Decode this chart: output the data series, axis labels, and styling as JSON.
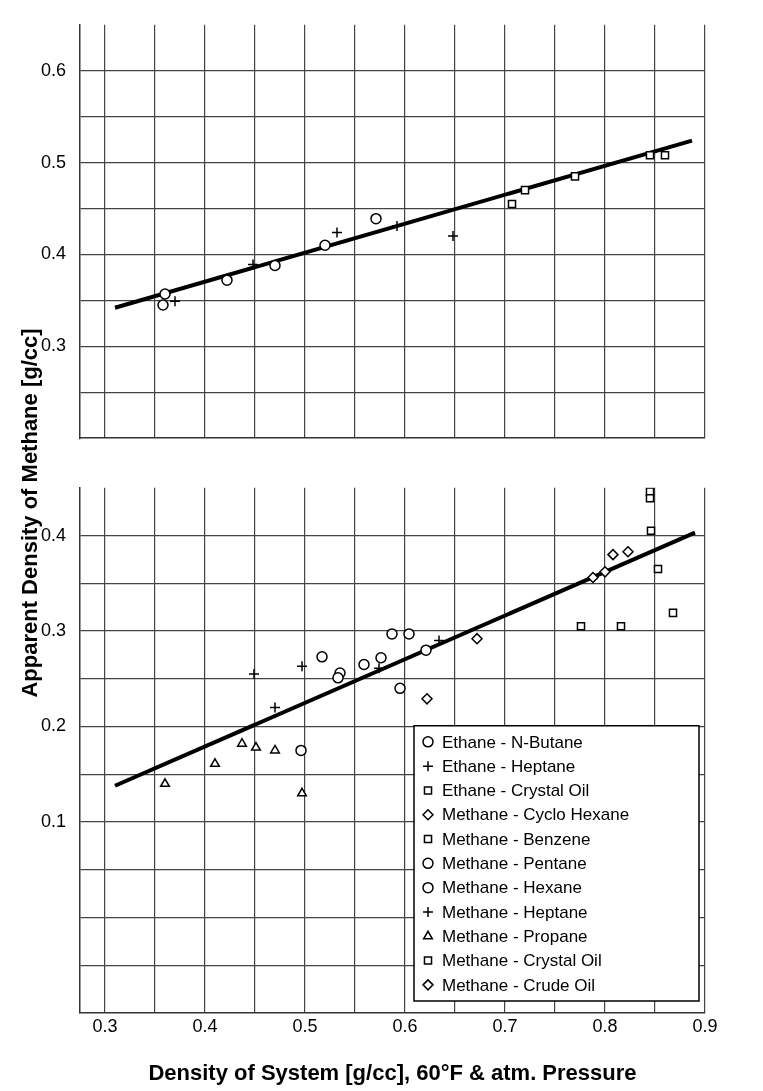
{
  "chart_data": [
    {
      "type": "scatter",
      "tick_labels": "y",
      "grid": true,
      "xlim": [
        0.275,
        0.9
      ],
      "ylim": [
        0.2,
        0.65
      ],
      "xticks": [
        0.3,
        {
          "value": 0.35,
          "label": null
        },
        0.4,
        {
          "value": 0.45,
          "label": null
        },
        0.5,
        {
          "value": 0.55,
          "label": null
        },
        0.6,
        {
          "value": 0.65,
          "label": null
        },
        0.7,
        {
          "value": 0.75,
          "label": null
        },
        0.8,
        {
          "value": 0.85,
          "label": null
        },
        0.9
      ],
      "yticks": [
        {
          "value": 0.25,
          "label": null
        },
        0.3,
        {
          "value": 0.35,
          "label": null
        },
        0.4,
        {
          "value": 0.45,
          "label": null
        },
        0.5,
        {
          "value": 0.55,
          "label": null
        },
        0.6
      ],
      "series": [
        {
          "name": "Ethane - N-Butane",
          "color": "#000000",
          "marker": "circle",
          "x": [
            0.36,
            0.358,
            0.422,
            0.47,
            0.52,
            0.571
          ],
          "values": [
            0.357,
            0.345,
            0.372,
            0.388,
            0.41,
            0.439
          ]
        },
        {
          "name": "Ethane - Heptane",
          "color": "#000000",
          "marker": "cross",
          "x": [
            0.37,
            0.448,
            0.532,
            0.592,
            0.648
          ],
          "values": [
            0.349,
            0.389,
            0.424,
            0.431,
            0.42
          ]
        },
        {
          "name": "Ethane - Crystal Oil",
          "color": "#000000",
          "marker": "square",
          "x": [
            0.707,
            0.72,
            0.77,
            0.845,
            0.86
          ],
          "values": [
            0.455,
            0.47,
            0.485,
            0.508,
            0.508
          ]
        },
        {
          "type": "line",
          "color": "#000000",
          "marker": "none",
          "x": [
            0.31,
            0.887
          ],
          "values": [
            0.342,
            0.524
          ]
        }
      ]
    },
    {
      "type": "scatter",
      "ylabel": "Apparent Density of Methane [g/cc]",
      "xlabel": "Density of System [g/cc], 60°F & atm. Pressure",
      "grid": true,
      "legend": "bottom right",
      "xlim": [
        0.275,
        0.9
      ],
      "ylim": [
        -0.1,
        0.45
      ],
      "xticks": [
        0.3,
        {
          "value": 0.35,
          "label": null
        },
        0.4,
        {
          "value": 0.45,
          "label": null
        },
        0.5,
        {
          "value": 0.55,
          "label": null
        },
        0.6,
        {
          "value": 0.65,
          "label": null
        },
        0.7,
        {
          "value": 0.75,
          "label": null
        },
        0.8,
        {
          "value": 0.85,
          "label": null
        },
        0.9
      ],
      "yticks": [
        {
          "value": -0.05,
          "label": null
        },
        {
          "value": 0,
          "label": null
        },
        {
          "value": 0.05,
          "label": null
        },
        0.1,
        {
          "value": 0.15,
          "label": null
        },
        0.2,
        {
          "value": 0.25,
          "label": null
        },
        0.3,
        {
          "value": 0.35,
          "label": null
        },
        0.4
      ],
      "series": [
        {
          "name": "Methane - Cyclo Hexane",
          "color": "#000000",
          "marker": "diamond",
          "x": [
            0.622,
            0.672
          ],
          "values": [
            0.229,
            0.292
          ]
        },
        {
          "name": "Methane - Benzene",
          "color": "#000000",
          "marker": "square",
          "x": [
            0.776,
            0.816
          ],
          "values": [
            0.305,
            0.305
          ]
        },
        {
          "name": "Methane - Pentane",
          "color": "#000000",
          "marker": "circle",
          "x": [
            0.496,
            0.533,
            0.595,
            0.576
          ],
          "values": [
            0.175,
            0.251,
            0.24,
            0.272
          ]
        },
        {
          "name": "Methane - Hexane",
          "color": "#000000",
          "marker": "circle",
          "x": [
            0.517,
            0.535,
            0.559,
            0.587,
            0.604,
            0.621
          ],
          "values": [
            0.273,
            0.256,
            0.265,
            0.297,
            0.297,
            0.28
          ]
        },
        {
          "name": "Methane - Heptane",
          "color": "#000000",
          "marker": "cross",
          "x": [
            0.449,
            0.497,
            0.47,
            0.574,
            0.634
          ],
          "values": [
            0.255,
            0.263,
            0.22,
            0.261,
            0.29
          ]
        },
        {
          "name": "Methane - Propane",
          "color": "#000000",
          "marker": "triangle",
          "x": [
            0.36,
            0.41,
            0.437,
            0.451,
            0.47,
            0.497
          ],
          "values": [
            0.14,
            0.161,
            0.182,
            0.178,
            0.175,
            0.13
          ]
        },
        {
          "name": "Methane - Crystal Oil",
          "color": "#000000",
          "marker": "square",
          "x": [
            0.845,
            0.845,
            0.846,
            0.853,
            0.868
          ],
          "values": [
            0.446,
            0.439,
            0.405,
            0.365,
            0.319
          ]
        },
        {
          "name": "Methane - Crude Oil",
          "color": "#000000",
          "marker": "diamond",
          "x": [
            0.788,
            0.8,
            0.808,
            0.823
          ],
          "values": [
            0.356,
            0.362,
            0.38,
            0.383
          ]
        },
        {
          "type": "line",
          "color": "#000000",
          "marker": "none",
          "x": [
            0.31,
            0.89
          ],
          "values": [
            0.138,
            0.403
          ]
        }
      ]
    }
  ]
}
